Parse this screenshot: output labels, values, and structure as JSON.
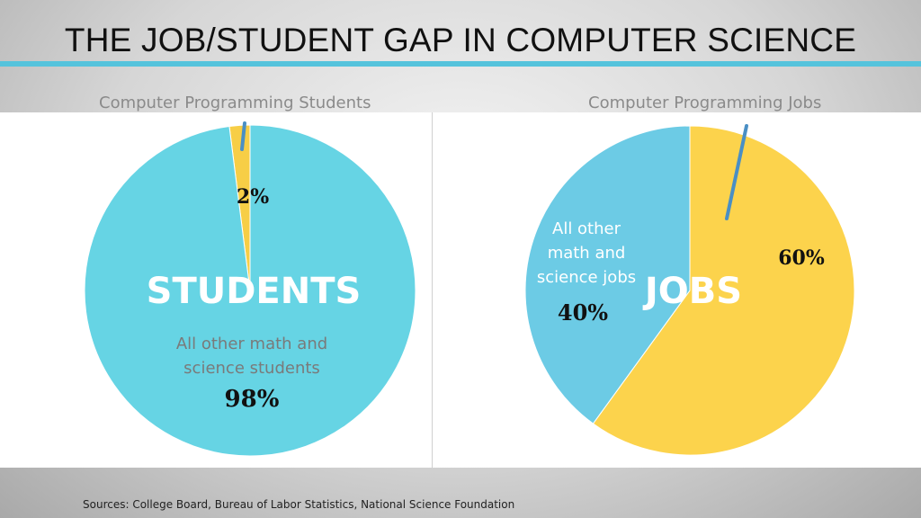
{
  "title": "THE JOB/STUDENT GAP IN COMPUTER SCIENCE",
  "sources": "Sources: College Board, Bureau of Labor Statistics, National Science Foundation",
  "chart_data": [
    {
      "type": "pie",
      "title": "Computer Programming Students",
      "center_label": "STUDENTS",
      "slices": [
        {
          "label": "",
          "value": 2,
          "value_label": "2%",
          "color": "#f7ce46"
        },
        {
          "label": "All other math and science students",
          "value": 98,
          "value_label": "98%",
          "color": "#66d4e4"
        }
      ]
    },
    {
      "type": "pie",
      "title": "Computer Programming Jobs",
      "center_label": "JOBS",
      "slices": [
        {
          "label": "",
          "value": 60,
          "value_label": "60%",
          "color": "#fcd34c"
        },
        {
          "label": "All other math and science jobs",
          "value": 40,
          "value_label": "40%",
          "color": "#6ccbe5"
        }
      ]
    }
  ]
}
